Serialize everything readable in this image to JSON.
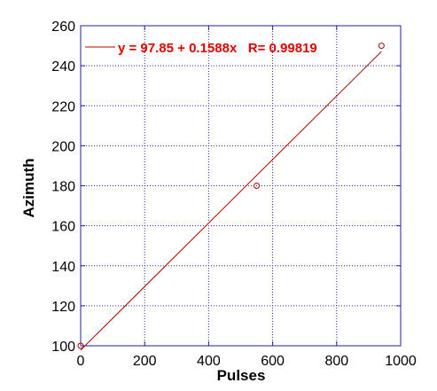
{
  "chart_data": {
    "type": "scatter",
    "xlabel": "Pulses",
    "ylabel": "Azimuth",
    "xlim": [
      0,
      1000
    ],
    "ylim": [
      100,
      260
    ],
    "xticks": [
      "0",
      "200",
      "400",
      "600",
      "800",
      "1000"
    ],
    "yticks": [
      "100",
      "120",
      "140",
      "160",
      "180",
      "200",
      "220",
      "240",
      "260"
    ],
    "xtick_values": [
      0,
      200,
      400,
      600,
      800,
      1000
    ],
    "ytick_values": [
      100,
      120,
      140,
      160,
      180,
      200,
      220,
      240,
      260
    ],
    "grid": true,
    "legend_position": "top",
    "points": [
      {
        "x": 0,
        "y": 100
      },
      {
        "x": 550,
        "y": 180
      },
      {
        "x": 940,
        "y": 250
      }
    ],
    "fit": {
      "intercept": 97.85,
      "slope": 0.1588,
      "x_range": [
        0,
        940
      ],
      "label": "y = 97.85 + 0.1588x   R= 0.99819"
    },
    "colors": {
      "series": "#b00000",
      "frame": "#2020a0",
      "grid": "#3030b0",
      "legend_text": "#e00000"
    }
  }
}
